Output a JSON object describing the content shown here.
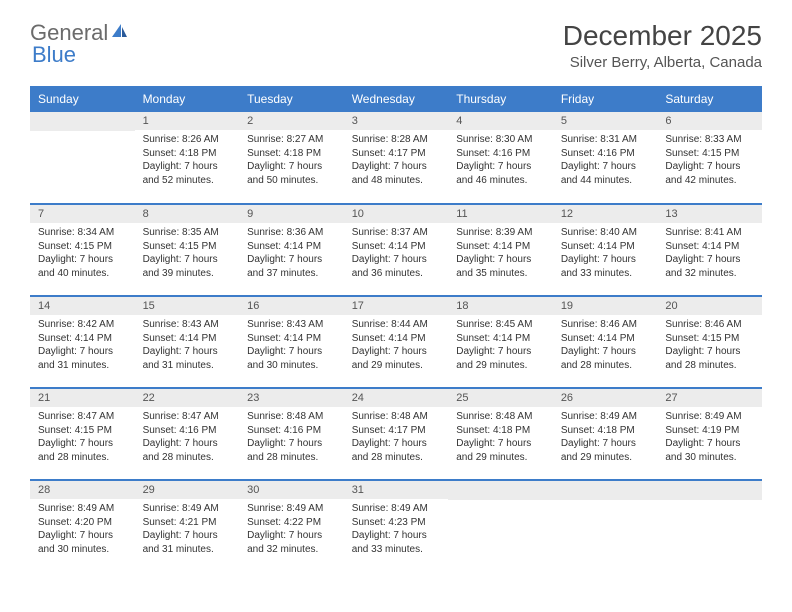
{
  "brand": {
    "text1": "General",
    "text2": "Blue",
    "color_general": "#6b6b6b",
    "color_blue": "#3d7cc9"
  },
  "title": "December 2025",
  "location": "Silver Berry, Alberta, Canada",
  "colors": {
    "header_bg": "#3d7cc9",
    "header_text": "#ffffff",
    "daynum_bg": "#ececec",
    "border": "#3d7cc9",
    "text": "#333333"
  },
  "daynames": [
    "Sunday",
    "Monday",
    "Tuesday",
    "Wednesday",
    "Thursday",
    "Friday",
    "Saturday"
  ],
  "weeks": [
    [
      {
        "n": "",
        "sunrise": "",
        "sunset": "",
        "daylight": ""
      },
      {
        "n": "1",
        "sunrise": "Sunrise: 8:26 AM",
        "sunset": "Sunset: 4:18 PM",
        "daylight": "Daylight: 7 hours and 52 minutes."
      },
      {
        "n": "2",
        "sunrise": "Sunrise: 8:27 AM",
        "sunset": "Sunset: 4:18 PM",
        "daylight": "Daylight: 7 hours and 50 minutes."
      },
      {
        "n": "3",
        "sunrise": "Sunrise: 8:28 AM",
        "sunset": "Sunset: 4:17 PM",
        "daylight": "Daylight: 7 hours and 48 minutes."
      },
      {
        "n": "4",
        "sunrise": "Sunrise: 8:30 AM",
        "sunset": "Sunset: 4:16 PM",
        "daylight": "Daylight: 7 hours and 46 minutes."
      },
      {
        "n": "5",
        "sunrise": "Sunrise: 8:31 AM",
        "sunset": "Sunset: 4:16 PM",
        "daylight": "Daylight: 7 hours and 44 minutes."
      },
      {
        "n": "6",
        "sunrise": "Sunrise: 8:33 AM",
        "sunset": "Sunset: 4:15 PM",
        "daylight": "Daylight: 7 hours and 42 minutes."
      }
    ],
    [
      {
        "n": "7",
        "sunrise": "Sunrise: 8:34 AM",
        "sunset": "Sunset: 4:15 PM",
        "daylight": "Daylight: 7 hours and 40 minutes."
      },
      {
        "n": "8",
        "sunrise": "Sunrise: 8:35 AM",
        "sunset": "Sunset: 4:15 PM",
        "daylight": "Daylight: 7 hours and 39 minutes."
      },
      {
        "n": "9",
        "sunrise": "Sunrise: 8:36 AM",
        "sunset": "Sunset: 4:14 PM",
        "daylight": "Daylight: 7 hours and 37 minutes."
      },
      {
        "n": "10",
        "sunrise": "Sunrise: 8:37 AM",
        "sunset": "Sunset: 4:14 PM",
        "daylight": "Daylight: 7 hours and 36 minutes."
      },
      {
        "n": "11",
        "sunrise": "Sunrise: 8:39 AM",
        "sunset": "Sunset: 4:14 PM",
        "daylight": "Daylight: 7 hours and 35 minutes."
      },
      {
        "n": "12",
        "sunrise": "Sunrise: 8:40 AM",
        "sunset": "Sunset: 4:14 PM",
        "daylight": "Daylight: 7 hours and 33 minutes."
      },
      {
        "n": "13",
        "sunrise": "Sunrise: 8:41 AM",
        "sunset": "Sunset: 4:14 PM",
        "daylight": "Daylight: 7 hours and 32 minutes."
      }
    ],
    [
      {
        "n": "14",
        "sunrise": "Sunrise: 8:42 AM",
        "sunset": "Sunset: 4:14 PM",
        "daylight": "Daylight: 7 hours and 31 minutes."
      },
      {
        "n": "15",
        "sunrise": "Sunrise: 8:43 AM",
        "sunset": "Sunset: 4:14 PM",
        "daylight": "Daylight: 7 hours and 31 minutes."
      },
      {
        "n": "16",
        "sunrise": "Sunrise: 8:43 AM",
        "sunset": "Sunset: 4:14 PM",
        "daylight": "Daylight: 7 hours and 30 minutes."
      },
      {
        "n": "17",
        "sunrise": "Sunrise: 8:44 AM",
        "sunset": "Sunset: 4:14 PM",
        "daylight": "Daylight: 7 hours and 29 minutes."
      },
      {
        "n": "18",
        "sunrise": "Sunrise: 8:45 AM",
        "sunset": "Sunset: 4:14 PM",
        "daylight": "Daylight: 7 hours and 29 minutes."
      },
      {
        "n": "19",
        "sunrise": "Sunrise: 8:46 AM",
        "sunset": "Sunset: 4:14 PM",
        "daylight": "Daylight: 7 hours and 28 minutes."
      },
      {
        "n": "20",
        "sunrise": "Sunrise: 8:46 AM",
        "sunset": "Sunset: 4:15 PM",
        "daylight": "Daylight: 7 hours and 28 minutes."
      }
    ],
    [
      {
        "n": "21",
        "sunrise": "Sunrise: 8:47 AM",
        "sunset": "Sunset: 4:15 PM",
        "daylight": "Daylight: 7 hours and 28 minutes."
      },
      {
        "n": "22",
        "sunrise": "Sunrise: 8:47 AM",
        "sunset": "Sunset: 4:16 PM",
        "daylight": "Daylight: 7 hours and 28 minutes."
      },
      {
        "n": "23",
        "sunrise": "Sunrise: 8:48 AM",
        "sunset": "Sunset: 4:16 PM",
        "daylight": "Daylight: 7 hours and 28 minutes."
      },
      {
        "n": "24",
        "sunrise": "Sunrise: 8:48 AM",
        "sunset": "Sunset: 4:17 PM",
        "daylight": "Daylight: 7 hours and 28 minutes."
      },
      {
        "n": "25",
        "sunrise": "Sunrise: 8:48 AM",
        "sunset": "Sunset: 4:18 PM",
        "daylight": "Daylight: 7 hours and 29 minutes."
      },
      {
        "n": "26",
        "sunrise": "Sunrise: 8:49 AM",
        "sunset": "Sunset: 4:18 PM",
        "daylight": "Daylight: 7 hours and 29 minutes."
      },
      {
        "n": "27",
        "sunrise": "Sunrise: 8:49 AM",
        "sunset": "Sunset: 4:19 PM",
        "daylight": "Daylight: 7 hours and 30 minutes."
      }
    ],
    [
      {
        "n": "28",
        "sunrise": "Sunrise: 8:49 AM",
        "sunset": "Sunset: 4:20 PM",
        "daylight": "Daylight: 7 hours and 30 minutes."
      },
      {
        "n": "29",
        "sunrise": "Sunrise: 8:49 AM",
        "sunset": "Sunset: 4:21 PM",
        "daylight": "Daylight: 7 hours and 31 minutes."
      },
      {
        "n": "30",
        "sunrise": "Sunrise: 8:49 AM",
        "sunset": "Sunset: 4:22 PM",
        "daylight": "Daylight: 7 hours and 32 minutes."
      },
      {
        "n": "31",
        "sunrise": "Sunrise: 8:49 AM",
        "sunset": "Sunset: 4:23 PM",
        "daylight": "Daylight: 7 hours and 33 minutes."
      },
      {
        "n": "",
        "sunrise": "",
        "sunset": "",
        "daylight": ""
      },
      {
        "n": "",
        "sunrise": "",
        "sunset": "",
        "daylight": ""
      },
      {
        "n": "",
        "sunrise": "",
        "sunset": "",
        "daylight": ""
      }
    ]
  ]
}
